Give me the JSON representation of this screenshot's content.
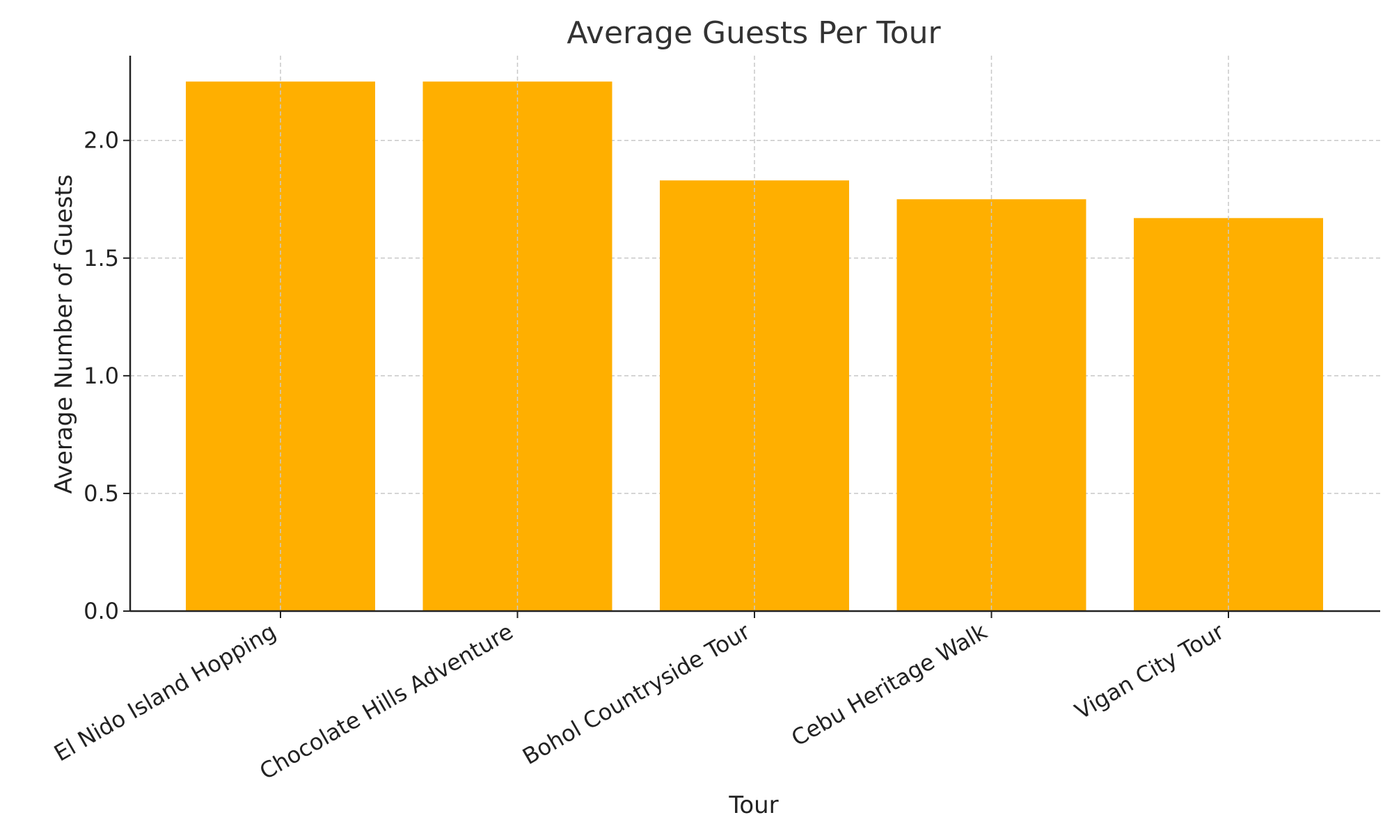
{
  "chart_data": {
    "type": "bar",
    "title": "Average Guests Per Tour",
    "xlabel": "Tour",
    "ylabel": "Average Number of Guests",
    "categories": [
      "El Nido Island Hopping",
      "Chocolate Hills Adventure",
      "Bohol Countryside Tour",
      "Cebu Heritage Walk",
      "Vigan City Tour"
    ],
    "values": [
      2.25,
      2.25,
      1.83,
      1.75,
      1.67
    ],
    "ylim": [
      0,
      2.36
    ],
    "yticks": [
      "0.0",
      "0.5",
      "1.0",
      "1.5",
      "2.0"
    ],
    "grid": true,
    "bar_color": "#FFAF00"
  }
}
